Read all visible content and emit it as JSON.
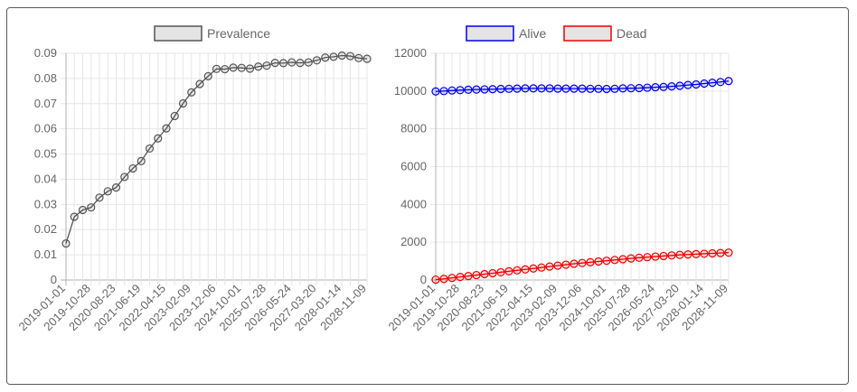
{
  "chart_data": [
    {
      "type": "line",
      "title": "",
      "xlabel": "",
      "ylabel": "",
      "x": [
        "2019-01-01",
        "2019-04-01",
        "2019-07-01",
        "2019-10-28",
        "2020-01-01",
        "2020-04-01",
        "2020-08-23",
        "2020-11-01",
        "2021-02-01",
        "2021-06-19",
        "2021-09-01",
        "2021-12-01",
        "2022-04-15",
        "2022-07-01",
        "2022-10-01",
        "2023-02-09",
        "2023-05-01",
        "2023-08-01",
        "2023-12-06",
        "2024-03-01",
        "2024-06-01",
        "2024-10-01",
        "2025-01-01",
        "2025-04-01",
        "2025-07-28",
        "2025-11-01",
        "2026-02-01",
        "2026-05-24",
        "2026-08-01",
        "2026-11-01",
        "2027-03-20",
        "2027-06-01",
        "2027-09-01",
        "2028-01-14",
        "2028-04-01",
        "2028-07-01",
        "2028-11-09"
      ],
      "xticks": [
        "2019-01-01",
        "2019-10-28",
        "2020-08-23",
        "2021-06-19",
        "2022-04-15",
        "2023-02-09",
        "2023-12-06",
        "2024-10-01",
        "2025-07-28",
        "2026-05-24",
        "2027-03-20",
        "2028-01-14",
        "2028-11-09"
      ],
      "ylim": [
        0,
        0.09
      ],
      "yticks": [
        "0",
        "0.01",
        "0.02",
        "0.03",
        "0.04",
        "0.05",
        "0.06",
        "0.07",
        "0.08",
        "0.09"
      ],
      "grid": true,
      "legend_position": "top",
      "series": [
        {
          "name": "Prevalence",
          "color": "#555555",
          "values": [
            0.0145,
            0.0251,
            0.0278,
            0.0288,
            0.0327,
            0.0352,
            0.0367,
            0.0409,
            0.0443,
            0.0472,
            0.0522,
            0.0562,
            0.0602,
            0.0651,
            0.0701,
            0.0745,
            0.0778,
            0.0809,
            0.0838,
            0.0837,
            0.0843,
            0.0842,
            0.0839,
            0.0847,
            0.0851,
            0.0862,
            0.0861,
            0.0864,
            0.0862,
            0.0864,
            0.0872,
            0.0883,
            0.0886,
            0.0891,
            0.0889,
            0.0881,
            0.0878
          ]
        }
      ]
    },
    {
      "type": "line",
      "title": "",
      "xlabel": "",
      "ylabel": "",
      "x": [
        "2019-01-01",
        "2019-04-01",
        "2019-07-01",
        "2019-10-28",
        "2020-01-01",
        "2020-04-01",
        "2020-08-23",
        "2020-11-01",
        "2021-02-01",
        "2021-06-19",
        "2021-09-01",
        "2021-12-01",
        "2022-04-15",
        "2022-07-01",
        "2022-10-01",
        "2023-02-09",
        "2023-05-01",
        "2023-08-01",
        "2023-12-06",
        "2024-03-01",
        "2024-06-01",
        "2024-10-01",
        "2025-01-01",
        "2025-04-01",
        "2025-07-28",
        "2025-11-01",
        "2026-02-01",
        "2026-05-24",
        "2026-08-01",
        "2026-11-01",
        "2027-03-20",
        "2027-06-01",
        "2027-09-01",
        "2028-01-14",
        "2028-04-01",
        "2028-07-01",
        "2028-11-09"
      ],
      "xticks": [
        "2019-01-01",
        "2019-10-28",
        "2020-08-23",
        "2021-06-19",
        "2022-04-15",
        "2023-02-09",
        "2023-12-06",
        "2024-10-01",
        "2025-07-28",
        "2026-05-24",
        "2027-03-20",
        "2028-01-14",
        "2028-11-09"
      ],
      "ylim": [
        0,
        12000
      ],
      "yticks": [
        "0",
        "2000",
        "4000",
        "6000",
        "8000",
        "10000",
        "12000"
      ],
      "grid": true,
      "legend_position": "top",
      "series": [
        {
          "name": "Alive",
          "color": "#0000ee",
          "values": [
            9980,
            10000,
            10030,
            10050,
            10070,
            10080,
            10090,
            10100,
            10110,
            10120,
            10130,
            10140,
            10140,
            10140,
            10140,
            10130,
            10130,
            10130,
            10130,
            10120,
            10120,
            10110,
            10120,
            10140,
            10150,
            10160,
            10180,
            10200,
            10220,
            10250,
            10280,
            10320,
            10350,
            10400,
            10440,
            10480,
            10530
          ]
        },
        {
          "name": "Dead",
          "color": "#ee0000",
          "values": [
            20,
            60,
            110,
            160,
            210,
            260,
            310,
            360,
            410,
            460,
            510,
            560,
            610,
            660,
            710,
            760,
            810,
            860,
            900,
            940,
            980,
            1020,
            1060,
            1100,
            1140,
            1180,
            1210,
            1240,
            1270,
            1300,
            1330,
            1350,
            1370,
            1390,
            1410,
            1430,
            1450
          ]
        }
      ]
    }
  ]
}
